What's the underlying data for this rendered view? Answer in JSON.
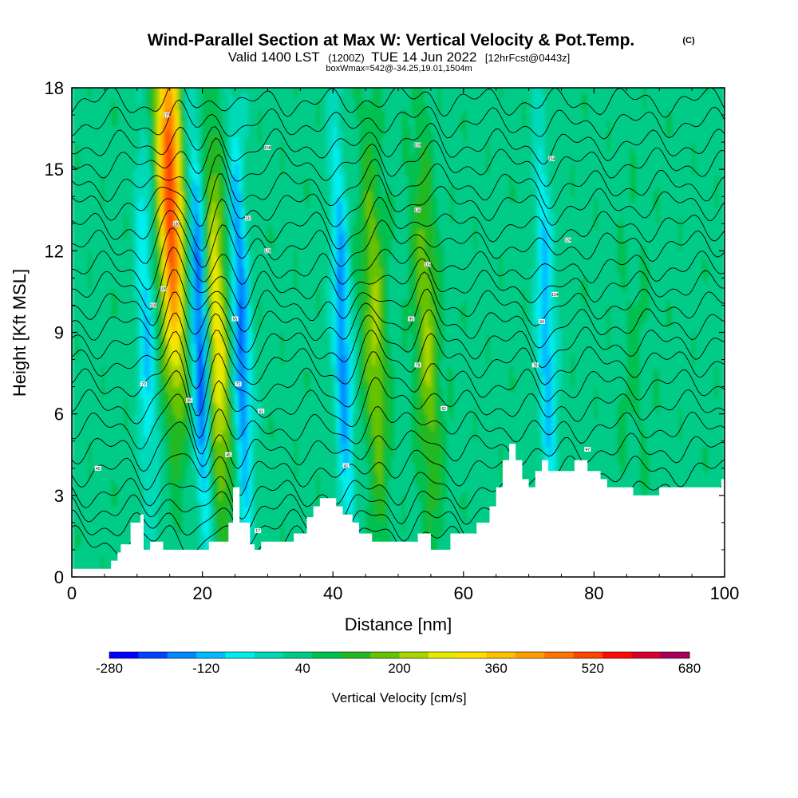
{
  "title": "Wind-Parallel Section at Max W: Vertical Velocity & Pot.Temp.",
  "copyright": "(C)",
  "subtitle": {
    "valid": "Valid 1400 LST",
    "zulu": "(1200Z)",
    "date": "TUE 14 Jun 2022",
    "forecast": "[12hrFcst@0443z]"
  },
  "box_info": "boxWmax=542@-34.25,19.01,1504m",
  "chart_data": {
    "type": "heatmap",
    "title": "Wind-Parallel Section at Max W: Vertical Velocity & Pot.Temp.",
    "xlabel": "Distance [nm]",
    "ylabel": "Height [Kft MSL]",
    "xlim": [
      0,
      100
    ],
    "ylim": [
      0,
      18
    ],
    "xticks": [
      0,
      20,
      40,
      60,
      80,
      100
    ],
    "yticks": [
      0,
      3,
      6,
      9,
      12,
      15,
      18
    ],
    "colorbar": {
      "label": "Vertical Velocity [cm/s]",
      "tick_labels": [
        "-280",
        "-120",
        "40",
        "200",
        "360",
        "520",
        "680"
      ],
      "tick_values": [
        -280,
        -120,
        40,
        200,
        360,
        520,
        680
      ],
      "min": -280,
      "max": 680,
      "colors": [
        "#0000ff",
        "#0044ff",
        "#0088ff",
        "#00bbff",
        "#00eeee",
        "#00d9b8",
        "#00cc88",
        "#00c050",
        "#22b822",
        "#66c300",
        "#aad400",
        "#e6ea00",
        "#ffe000",
        "#ffc000",
        "#ff9d00",
        "#ff7400",
        "#ff4400",
        "#ff0a00",
        "#d90030",
        "#a8005a"
      ]
    },
    "vertical_velocity_features": [
      {
        "type": "updraft",
        "x": 15.8,
        "max_cms": 542,
        "zmax_kft": 14,
        "label": "max W"
      },
      {
        "type": "updraft",
        "x": 22.3,
        "max_cms": 300
      },
      {
        "type": "updraft",
        "x": 46.5,
        "max_cms": 210
      },
      {
        "type": "updraft",
        "x": 54.5,
        "max_cms": 200
      },
      {
        "type": "downdraft",
        "x": 19.8,
        "max_cms": -250
      },
      {
        "type": "downdraft",
        "x": 26.0,
        "max_cms": -200
      },
      {
        "type": "downdraft",
        "x": 41.5,
        "max_cms": -170
      },
      {
        "type": "downdraft",
        "x": 72.8,
        "max_cms": -130
      },
      {
        "type": "downdraft",
        "x": 11.5,
        "max_cms": -100
      }
    ],
    "terrain_nm_kft": [
      [
        0,
        0.3
      ],
      [
        6,
        0.3
      ],
      [
        6,
        0.6
      ],
      [
        7,
        0.6
      ],
      [
        7,
        0.9
      ],
      [
        7.5,
        0.9
      ],
      [
        7.5,
        1.2
      ],
      [
        9,
        1.2
      ],
      [
        9,
        2.0
      ],
      [
        10.5,
        2.0
      ],
      [
        10.5,
        2.3
      ],
      [
        11,
        2.3
      ],
      [
        11,
        1.0
      ],
      [
        12,
        1.0
      ],
      [
        12,
        1.3
      ],
      [
        14,
        1.3
      ],
      [
        14,
        1.0
      ],
      [
        21,
        1.0
      ],
      [
        21,
        1.3
      ],
      [
        24,
        1.3
      ],
      [
        24,
        2.0
      ],
      [
        24.7,
        2.0
      ],
      [
        24.7,
        3.3
      ],
      [
        25.7,
        3.3
      ],
      [
        25.7,
        2.0
      ],
      [
        27.3,
        2.0
      ],
      [
        27.3,
        1.2
      ],
      [
        28,
        1.2
      ],
      [
        28,
        1.0
      ],
      [
        29,
        1.0
      ],
      [
        29,
        1.3
      ],
      [
        34,
        1.3
      ],
      [
        34,
        1.6
      ],
      [
        36,
        1.6
      ],
      [
        36,
        2.2
      ],
      [
        37,
        2.2
      ],
      [
        37,
        2.6
      ],
      [
        38,
        2.6
      ],
      [
        38,
        2.9
      ],
      [
        40.5,
        2.9
      ],
      [
        40.5,
        2.6
      ],
      [
        41.5,
        2.6
      ],
      [
        41.5,
        2.3
      ],
      [
        43,
        2.3
      ],
      [
        43,
        2.0
      ],
      [
        44,
        2.0
      ],
      [
        44,
        1.6
      ],
      [
        46,
        1.6
      ],
      [
        46,
        1.3
      ],
      [
        53,
        1.3
      ],
      [
        53,
        1.6
      ],
      [
        55,
        1.6
      ],
      [
        55,
        1.0
      ],
      [
        58,
        1.0
      ],
      [
        58,
        1.6
      ],
      [
        62,
        1.6
      ],
      [
        62,
        2.0
      ],
      [
        64,
        2.0
      ],
      [
        64,
        2.6
      ],
      [
        65,
        2.6
      ],
      [
        65,
        3.3
      ],
      [
        66,
        3.3
      ],
      [
        66,
        4.3
      ],
      [
        67,
        4.3
      ],
      [
        67,
        4.9
      ],
      [
        68,
        4.9
      ],
      [
        68,
        4.3
      ],
      [
        69,
        4.3
      ],
      [
        69,
        3.6
      ],
      [
        70,
        3.6
      ],
      [
        70,
        3.3
      ],
      [
        71,
        3.3
      ],
      [
        71,
        3.9
      ],
      [
        72,
        3.9
      ],
      [
        72,
        4.3
      ],
      [
        73,
        4.3
      ],
      [
        73,
        3.9
      ],
      [
        77,
        3.9
      ],
      [
        77,
        4.3
      ],
      [
        79,
        4.3
      ],
      [
        79,
        3.9
      ],
      [
        81,
        3.9
      ],
      [
        81,
        3.6
      ],
      [
        82,
        3.6
      ],
      [
        82,
        3.3
      ],
      [
        86,
        3.3
      ],
      [
        86,
        3.0
      ],
      [
        90,
        3.0
      ],
      [
        90,
        3.3
      ],
      [
        99.5,
        3.3
      ],
      [
        99.5,
        3.6
      ],
      [
        100,
        3.6
      ]
    ],
    "isentrope_base_heights_kft": [
      1.3,
      1.9,
      2.5,
      3.1,
      3.9,
      4.7,
      5.5,
      6.3,
      7.1,
      7.9,
      8.6,
      9.3,
      10.0,
      10.7,
      11.4,
      12.2,
      12.9,
      13.7,
      14.4,
      15.2,
      15.9,
      16.7,
      17.5
    ],
    "isentrope_labels": [
      {
        "x": 4,
        "z": 4.0,
        "text": "40"
      },
      {
        "x": 11,
        "z": 7.1,
        "text": "70"
      },
      {
        "x": 12.5,
        "z": 10.0,
        "text": "100"
      },
      {
        "x": 14,
        "z": 10.6,
        "text": "105"
      },
      {
        "x": 16,
        "z": 13.0,
        "text": "130"
      },
      {
        "x": 14.5,
        "z": 17.0,
        "text": "170"
      },
      {
        "x": 18,
        "z": 6.5,
        "text": "65"
      },
      {
        "x": 24,
        "z": 4.5,
        "text": "45"
      },
      {
        "x": 25.5,
        "z": 7.1,
        "text": "71"
      },
      {
        "x": 25,
        "z": 9.5,
        "text": "95"
      },
      {
        "x": 27,
        "z": 13.2,
        "text": "132"
      },
      {
        "x": 29,
        "z": 6.1,
        "text": "61"
      },
      {
        "x": 30,
        "z": 12.0,
        "text": "120"
      },
      {
        "x": 30,
        "z": 15.8,
        "text": "158"
      },
      {
        "x": 28.5,
        "z": 1.7,
        "text": "17"
      },
      {
        "x": 42,
        "z": 4.1,
        "text": "41"
      },
      {
        "x": 52,
        "z": 9.5,
        "text": "95"
      },
      {
        "x": 53,
        "z": 7.8,
        "text": "78"
      },
      {
        "x": 53,
        "z": 13.5,
        "text": "135"
      },
      {
        "x": 54.5,
        "z": 11.5,
        "text": "115"
      },
      {
        "x": 53,
        "z": 15.9,
        "text": "159"
      },
      {
        "x": 57,
        "z": 6.2,
        "text": "62"
      },
      {
        "x": 71,
        "z": 7.8,
        "text": "78"
      },
      {
        "x": 72,
        "z": 9.4,
        "text": "94"
      },
      {
        "x": 74,
        "z": 10.4,
        "text": "104"
      },
      {
        "x": 73.5,
        "z": 15.4,
        "text": "154"
      },
      {
        "x": 76,
        "z": 12.4,
        "text": "124"
      },
      {
        "x": 79,
        "z": 4.7,
        "text": "47"
      }
    ]
  }
}
